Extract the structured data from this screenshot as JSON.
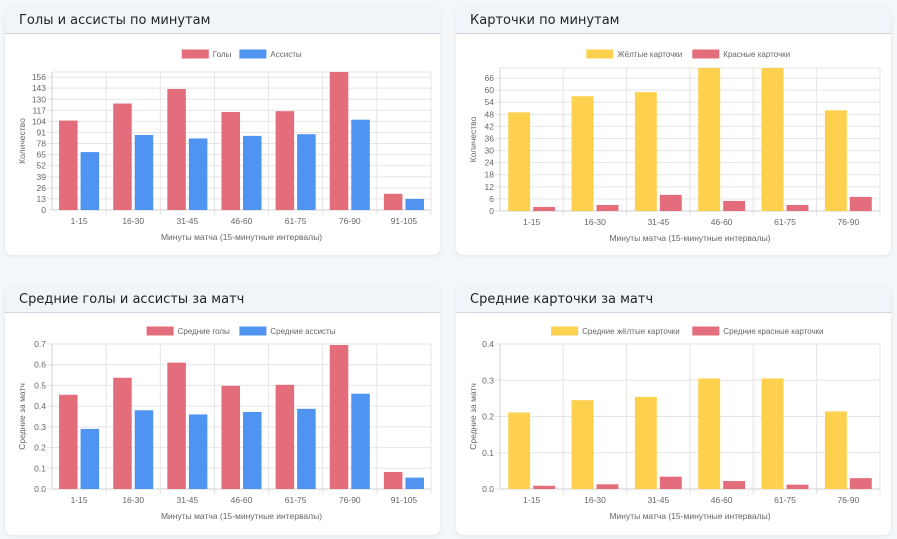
{
  "cards": [
    {
      "title": "Голы и ассисты по минутам"
    },
    {
      "title": "Карточки по минутам"
    },
    {
      "title": "Средние голы и ассисты за матч"
    },
    {
      "title": "Средние карточки за матч"
    }
  ],
  "chart_data": [
    {
      "type": "bar",
      "title": "Голы и ассисты по минутам",
      "xlabel": "Минуты матча (15-минутные интервалы)",
      "ylabel": "Количество",
      "categories": [
        "1-15",
        "16-30",
        "31-45",
        "46-60",
        "61-75",
        "76-90",
        "91-105"
      ],
      "series": [
        {
          "name": "Голы",
          "color": "#e46d7b",
          "values": [
            105,
            125,
            142,
            115,
            116,
            162,
            19
          ]
        },
        {
          "name": "Ассисты",
          "color": "#4f94f0",
          "values": [
            68,
            88,
            84,
            87,
            89,
            106,
            13
          ]
        }
      ],
      "yticks": [
        0,
        13,
        26,
        39,
        52,
        65,
        78,
        91,
        104,
        117,
        130,
        143,
        156
      ],
      "ylim": [
        0,
        162
      ],
      "grid": true,
      "legend": "top-center"
    },
    {
      "type": "bar",
      "title": "Карточки по минутам",
      "xlabel": "Минуты матча (15-минутные интервалы)",
      "ylabel": "Количество",
      "categories": [
        "1-15",
        "16-30",
        "31-45",
        "46-60",
        "61-75",
        "76-90"
      ],
      "series": [
        {
          "name": "Жёлтые карточки",
          "color": "#fdd04e",
          "values": [
            49,
            57,
            59,
            71,
            71,
            50
          ]
        },
        {
          "name": "Красные карточки",
          "color": "#e46d7b",
          "values": [
            2,
            3,
            8,
            5,
            3,
            7
          ]
        }
      ],
      "yticks": [
        0,
        6,
        12,
        18,
        24,
        30,
        36,
        42,
        48,
        54,
        60,
        66
      ],
      "ylim": [
        0,
        71
      ],
      "grid": true,
      "legend": "top-center"
    },
    {
      "type": "bar",
      "title": "Средние голы и ассисты за матч",
      "xlabel": "Минуты матча (15-минутные интервалы)",
      "ylabel": "Средние за матч",
      "categories": [
        "1-15",
        "16-30",
        "31-45",
        "46-60",
        "61-75",
        "76-90",
        "91-105"
      ],
      "series": [
        {
          "name": "Средние голы",
          "color": "#e46d7b",
          "values": [
            0.455,
            0.537,
            0.61,
            0.498,
            0.503,
            0.695,
            0.082
          ]
        },
        {
          "name": "Средние ассисты",
          "color": "#4f94f0",
          "values": [
            0.29,
            0.38,
            0.36,
            0.372,
            0.387,
            0.46,
            0.055
          ]
        }
      ],
      "yticks": [
        "0.0",
        "0.1",
        "0.2",
        "0.3",
        "0.4",
        "0.5",
        "0.6",
        "0.7"
      ],
      "ylim": [
        0,
        0.7
      ],
      "grid": true,
      "legend": "top-center"
    },
    {
      "type": "bar",
      "title": "Средние карточки за матч",
      "xlabel": "Минуты матча (15-минутные интервалы)",
      "ylabel": "Средние за матч",
      "categories": [
        "1-15",
        "16-30",
        "31-45",
        "46-60",
        "61-75",
        "76-90"
      ],
      "series": [
        {
          "name": "Средние жёлтые карточки",
          "color": "#fdd04e",
          "values": [
            0.211,
            0.245,
            0.254,
            0.305,
            0.305,
            0.214
          ]
        },
        {
          "name": "Средние красные карточки",
          "color": "#e46d7b",
          "values": [
            0.009,
            0.013,
            0.034,
            0.022,
            0.012,
            0.03
          ]
        }
      ],
      "yticks": [
        "0.0",
        "0.1",
        "0.2",
        "0.3",
        "0.4"
      ],
      "ylim": [
        0,
        0.4
      ],
      "grid": true,
      "legend": "top-center"
    }
  ]
}
